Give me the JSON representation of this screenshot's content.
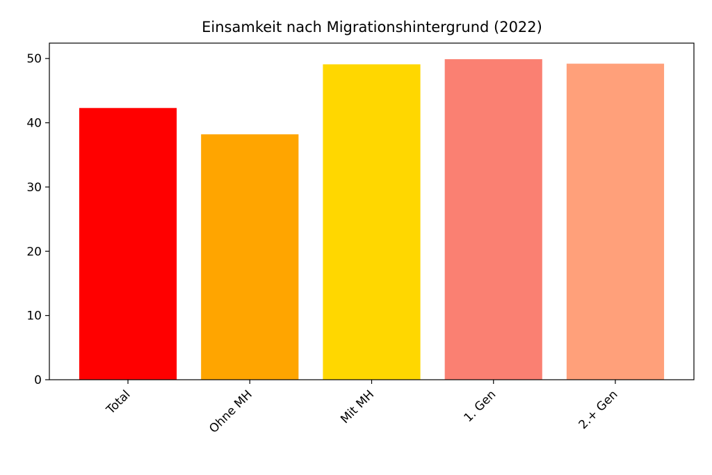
{
  "chart_data": {
    "type": "bar",
    "title": "Einsamkeit nach Migrationshintergrund (2022)",
    "categories": [
      "Total",
      "Ohne MH",
      "Mit MH",
      "1. Gen",
      "2.+ Gen"
    ],
    "values": [
      42.3,
      38.2,
      49.1,
      49.9,
      49.2
    ],
    "colors": [
      "#ff0000",
      "#ffa500",
      "#ffd700",
      "#fa8072",
      "#ffa07a"
    ],
    "ylim": [
      0,
      52.4
    ],
    "yticks": [
      0,
      10,
      20,
      30,
      40,
      50
    ],
    "grid": false
  }
}
